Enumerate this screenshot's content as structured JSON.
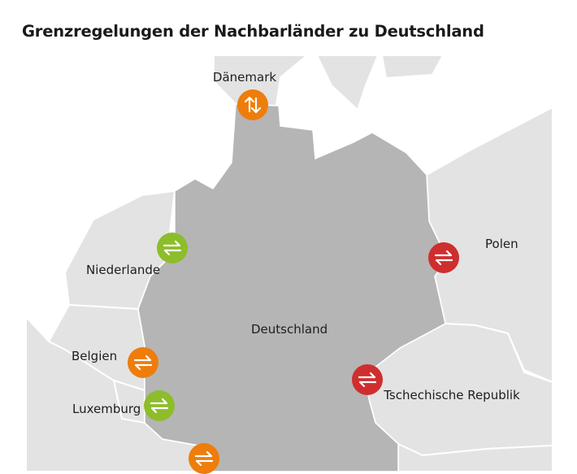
{
  "title": "Grenzregelungen der Nachbarländer zu Deutschland",
  "colors": {
    "germany": "#b5b5b5",
    "neighbors": "#e3e3e3",
    "water": "#ffffff",
    "orange": "#ee7d0c",
    "green": "#8dbd2b",
    "red": "#cf2e2e"
  },
  "countries": {
    "germany": "Deutschland",
    "denmark": "Dänemark",
    "netherlands": "Niederlande",
    "belgium": "Belgien",
    "luxembourg": "Luxemburg",
    "poland": "Polen",
    "czech": "Tschechische Republik"
  },
  "markers": [
    {
      "name": "denmark",
      "color": "orange",
      "icon": "arrows-vertical-icon"
    },
    {
      "name": "netherlands",
      "color": "green",
      "icon": "arrows-horizontal-icon"
    },
    {
      "name": "poland",
      "color": "red",
      "icon": "arrows-horizontal-icon"
    },
    {
      "name": "belgium",
      "color": "orange",
      "icon": "arrows-horizontal-icon"
    },
    {
      "name": "luxembourg",
      "color": "green",
      "icon": "arrows-horizontal-icon"
    },
    {
      "name": "czech",
      "color": "red",
      "icon": "arrows-horizontal-icon"
    },
    {
      "name": "france",
      "color": "orange",
      "icon": "arrows-horizontal-icon"
    }
  ]
}
